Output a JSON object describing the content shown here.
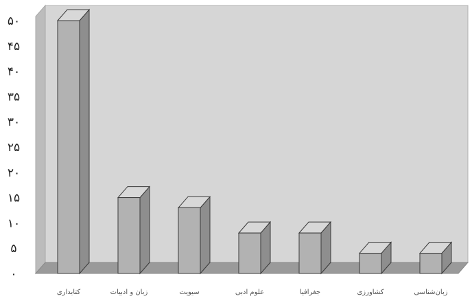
{
  "chart_data": {
    "type": "bar",
    "title": "",
    "xlabel": "",
    "ylabel": "",
    "categories": [
      "کتابداری",
      "زبان و ادبیات",
      "سیویت",
      "علوم ادبی",
      "جغرافیا",
      "کشاورزی",
      "زبان‌شناسی"
    ],
    "values": [
      50,
      15,
      13,
      8,
      8,
      4,
      4
    ],
    "ylim": [
      0,
      50
    ],
    "y_ticks": [
      0,
      5,
      10,
      15,
      20,
      25,
      30,
      35,
      40,
      45,
      50
    ],
    "y_tick_labels": [
      "٠",
      "۵",
      "١٠",
      "١۵",
      "٢٠",
      "٢۵",
      "٣٠",
      "٣۵",
      "۴٠",
      "۴۵",
      "۵٠"
    ],
    "grid": false,
    "legend": "none",
    "bar_style": "3d",
    "colors": {
      "back_wall": "#d6d6d6",
      "side_wall": "#bcbcbc",
      "floor": "#9a9a9a",
      "bar_front": "#b2b2b2",
      "bar_top": "#d8d8d8",
      "bar_side": "#8e8e8e",
      "bar_stroke": "#3a3a3a",
      "tick_text": "#222222",
      "category_text": "#555555"
    }
  }
}
